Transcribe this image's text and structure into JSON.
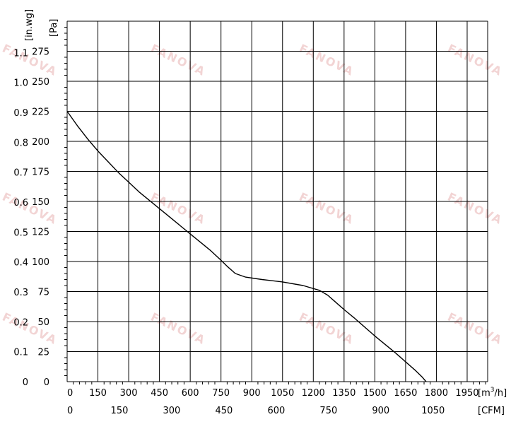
{
  "chart_data": {
    "type": "line",
    "watermark_text": "FANOVA",
    "watermark_color": "#f2d4d4",
    "line_color": "#000000",
    "grid_color": "#000000",
    "grid": true,
    "x_axis_primary": {
      "unit_label": "[m",
      "unit_sup": "3",
      "unit_tail": "/h]",
      "range": [
        0,
        2050
      ],
      "ticks": [
        0,
        150,
        300,
        450,
        600,
        750,
        900,
        1050,
        1200,
        1350,
        1500,
        1650,
        1800,
        1950
      ],
      "tick_labels": [
        "0",
        "150",
        "300",
        "450",
        "600",
        "750",
        "900",
        "1050",
        "1200",
        "1350",
        "1500",
        "1650",
        "1800",
        "1950"
      ]
    },
    "x_axis_secondary": {
      "unit_label": "[CFM]",
      "ticks_m3h": [
        0,
        254.85,
        509.7,
        764.55,
        1019.4,
        1274.25,
        1529.1,
        1783.95
      ],
      "tick_labels": [
        "0",
        "150",
        "300",
        "450",
        "600",
        "750",
        "900",
        "1050"
      ]
    },
    "y_axis_primary": {
      "unit_label": "[Pa]",
      "range": [
        0,
        300
      ],
      "ticks": [
        0,
        25,
        50,
        75,
        100,
        125,
        150,
        175,
        200,
        225,
        250,
        275
      ],
      "tick_labels": [
        "0",
        "25",
        "50",
        "75",
        "100",
        "125",
        "150",
        "175",
        "200",
        "225",
        "250",
        "275"
      ]
    },
    "y_axis_secondary": {
      "unit_label": "[in.wg]",
      "ticks_pa": [
        0,
        24.9,
        49.8,
        74.7,
        99.6,
        124.5,
        149.4,
        174.3,
        199.2,
        224.1,
        249.0,
        273.9
      ],
      "tick_labels": [
        "0",
        "0.1",
        "0.2",
        "0.3",
        "0.4",
        "0.5",
        "0.6",
        "0.7",
        "0.8",
        "0.9",
        "1.0",
        "1.1"
      ]
    },
    "series": [
      {
        "points": [
          [
            0,
            225
          ],
          [
            50,
            213
          ],
          [
            100,
            202
          ],
          [
            150,
            192
          ],
          [
            200,
            183
          ],
          [
            250,
            174
          ],
          [
            300,
            166
          ],
          [
            350,
            158
          ],
          [
            400,
            151
          ],
          [
            450,
            144
          ],
          [
            500,
            137
          ],
          [
            550,
            130
          ],
          [
            600,
            123
          ],
          [
            650,
            116
          ],
          [
            700,
            109
          ],
          [
            750,
            101
          ],
          [
            780,
            96
          ],
          [
            820,
            90
          ],
          [
            870,
            87
          ],
          [
            950,
            85
          ],
          [
            1050,
            83
          ],
          [
            1150,
            80
          ],
          [
            1230,
            76
          ],
          [
            1270,
            72
          ],
          [
            1310,
            66
          ],
          [
            1350,
            60
          ],
          [
            1400,
            53
          ],
          [
            1500,
            38
          ],
          [
            1600,
            24
          ],
          [
            1700,
            9
          ],
          [
            1730,
            4
          ],
          [
            1750,
            0
          ]
        ]
      }
    ]
  }
}
